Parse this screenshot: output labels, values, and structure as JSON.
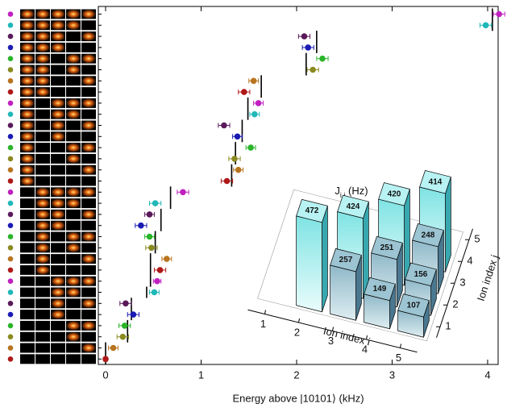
{
  "chart_data": {
    "type": "scatter-errorbar",
    "xlabel": "Energy above |10101⟩ (kHz)",
    "xlim": [
      -0.076,
      4.11
    ],
    "xticks": [
      0,
      1,
      2,
      3,
      4
    ],
    "colors": [
      "#c020c0",
      "#20b8b8",
      "#5a1a5a",
      "#1a1ab4",
      "#2ab42a",
      "#8a8a20",
      "#b8741e",
      "#b01818",
      "#c020c0",
      "#20b8b8",
      "#5a1a5a",
      "#1a1ab4",
      "#2ab42a",
      "#8a8a20",
      "#b8741e",
      "#b01818",
      "#c020c0",
      "#20b8b8",
      "#5a1a5a",
      "#1a1ab4",
      "#2ab42a",
      "#8a8a20",
      "#b8741e",
      "#b01818",
      "#c020c0",
      "#20b8b8",
      "#5a1a5a",
      "#1a1ab4",
      "#2ab42a",
      "#8a8a20",
      "#b8741e",
      "#b01818"
    ],
    "values": [
      4.12,
      3.98,
      2.08,
      2.12,
      2.27,
      2.17,
      1.55,
      1.45,
      1.6,
      1.56,
      1.24,
      1.38,
      1.52,
      1.35,
      1.39,
      1.27,
      0.81,
      0.52,
      0.46,
      0.37,
      0.46,
      0.48,
      0.64,
      0.57,
      0.54,
      0.51,
      0.21,
      0.29,
      0.2,
      0.18,
      0.08,
      0
    ],
    "errors": [
      0.06,
      0.06,
      0.06,
      0.06,
      0.06,
      0.06,
      0.05,
      0.06,
      0.05,
      0.05,
      0.06,
      0.05,
      0.05,
      0.06,
      0.05,
      0.06,
      0.06,
      0.06,
      0.05,
      0.06,
      0.05,
      0.06,
      0.05,
      0.06,
      0.04,
      0.05,
      0.06,
      0.06,
      0.06,
      0.06,
      0.05,
      0.02
    ],
    "theory": [
      4.05,
      4.05,
      2.21,
      2.21,
      2.1,
      2.1,
      1.63,
      1.63,
      1.49,
      1.49,
      1.43,
      1.43,
      1.36,
      1.36,
      1.32,
      1.32,
      0.68,
      0.68,
      0.58,
      0.58,
      0.52,
      0.52,
      0.47,
      0.47,
      0.47,
      0.43,
      0.27,
      0.27,
      0.23,
      0.23,
      0,
      0
    ],
    "inset": {
      "type": "bar3d",
      "title": {
        "symbol": "J",
        "subscript": "i,j",
        "unit": " (Hz)"
      },
      "xlabel": "Ion index i",
      "ylabel": "Ion index j",
      "xticks": [
        1,
        2,
        3,
        4,
        5
      ],
      "yticks": [
        1,
        2,
        3,
        4,
        5
      ],
      "bars": [
        {
          "i": 5,
          "j": 4,
          "value": 414
        },
        {
          "i": 4,
          "j": 3,
          "value": 420
        },
        {
          "i": 5,
          "j": 3,
          "value": 248
        },
        {
          "i": 3,
          "j": 2,
          "value": 424
        },
        {
          "i": 4,
          "j": 2,
          "value": 251
        },
        {
          "i": 5,
          "j": 2,
          "value": 156
        },
        {
          "i": 2,
          "j": 1,
          "value": 472
        },
        {
          "i": 3,
          "j": 1,
          "value": 257
        },
        {
          "i": 4,
          "j": 1,
          "value": 149
        },
        {
          "i": 5,
          "j": 1,
          "value": 107
        }
      ]
    }
  }
}
